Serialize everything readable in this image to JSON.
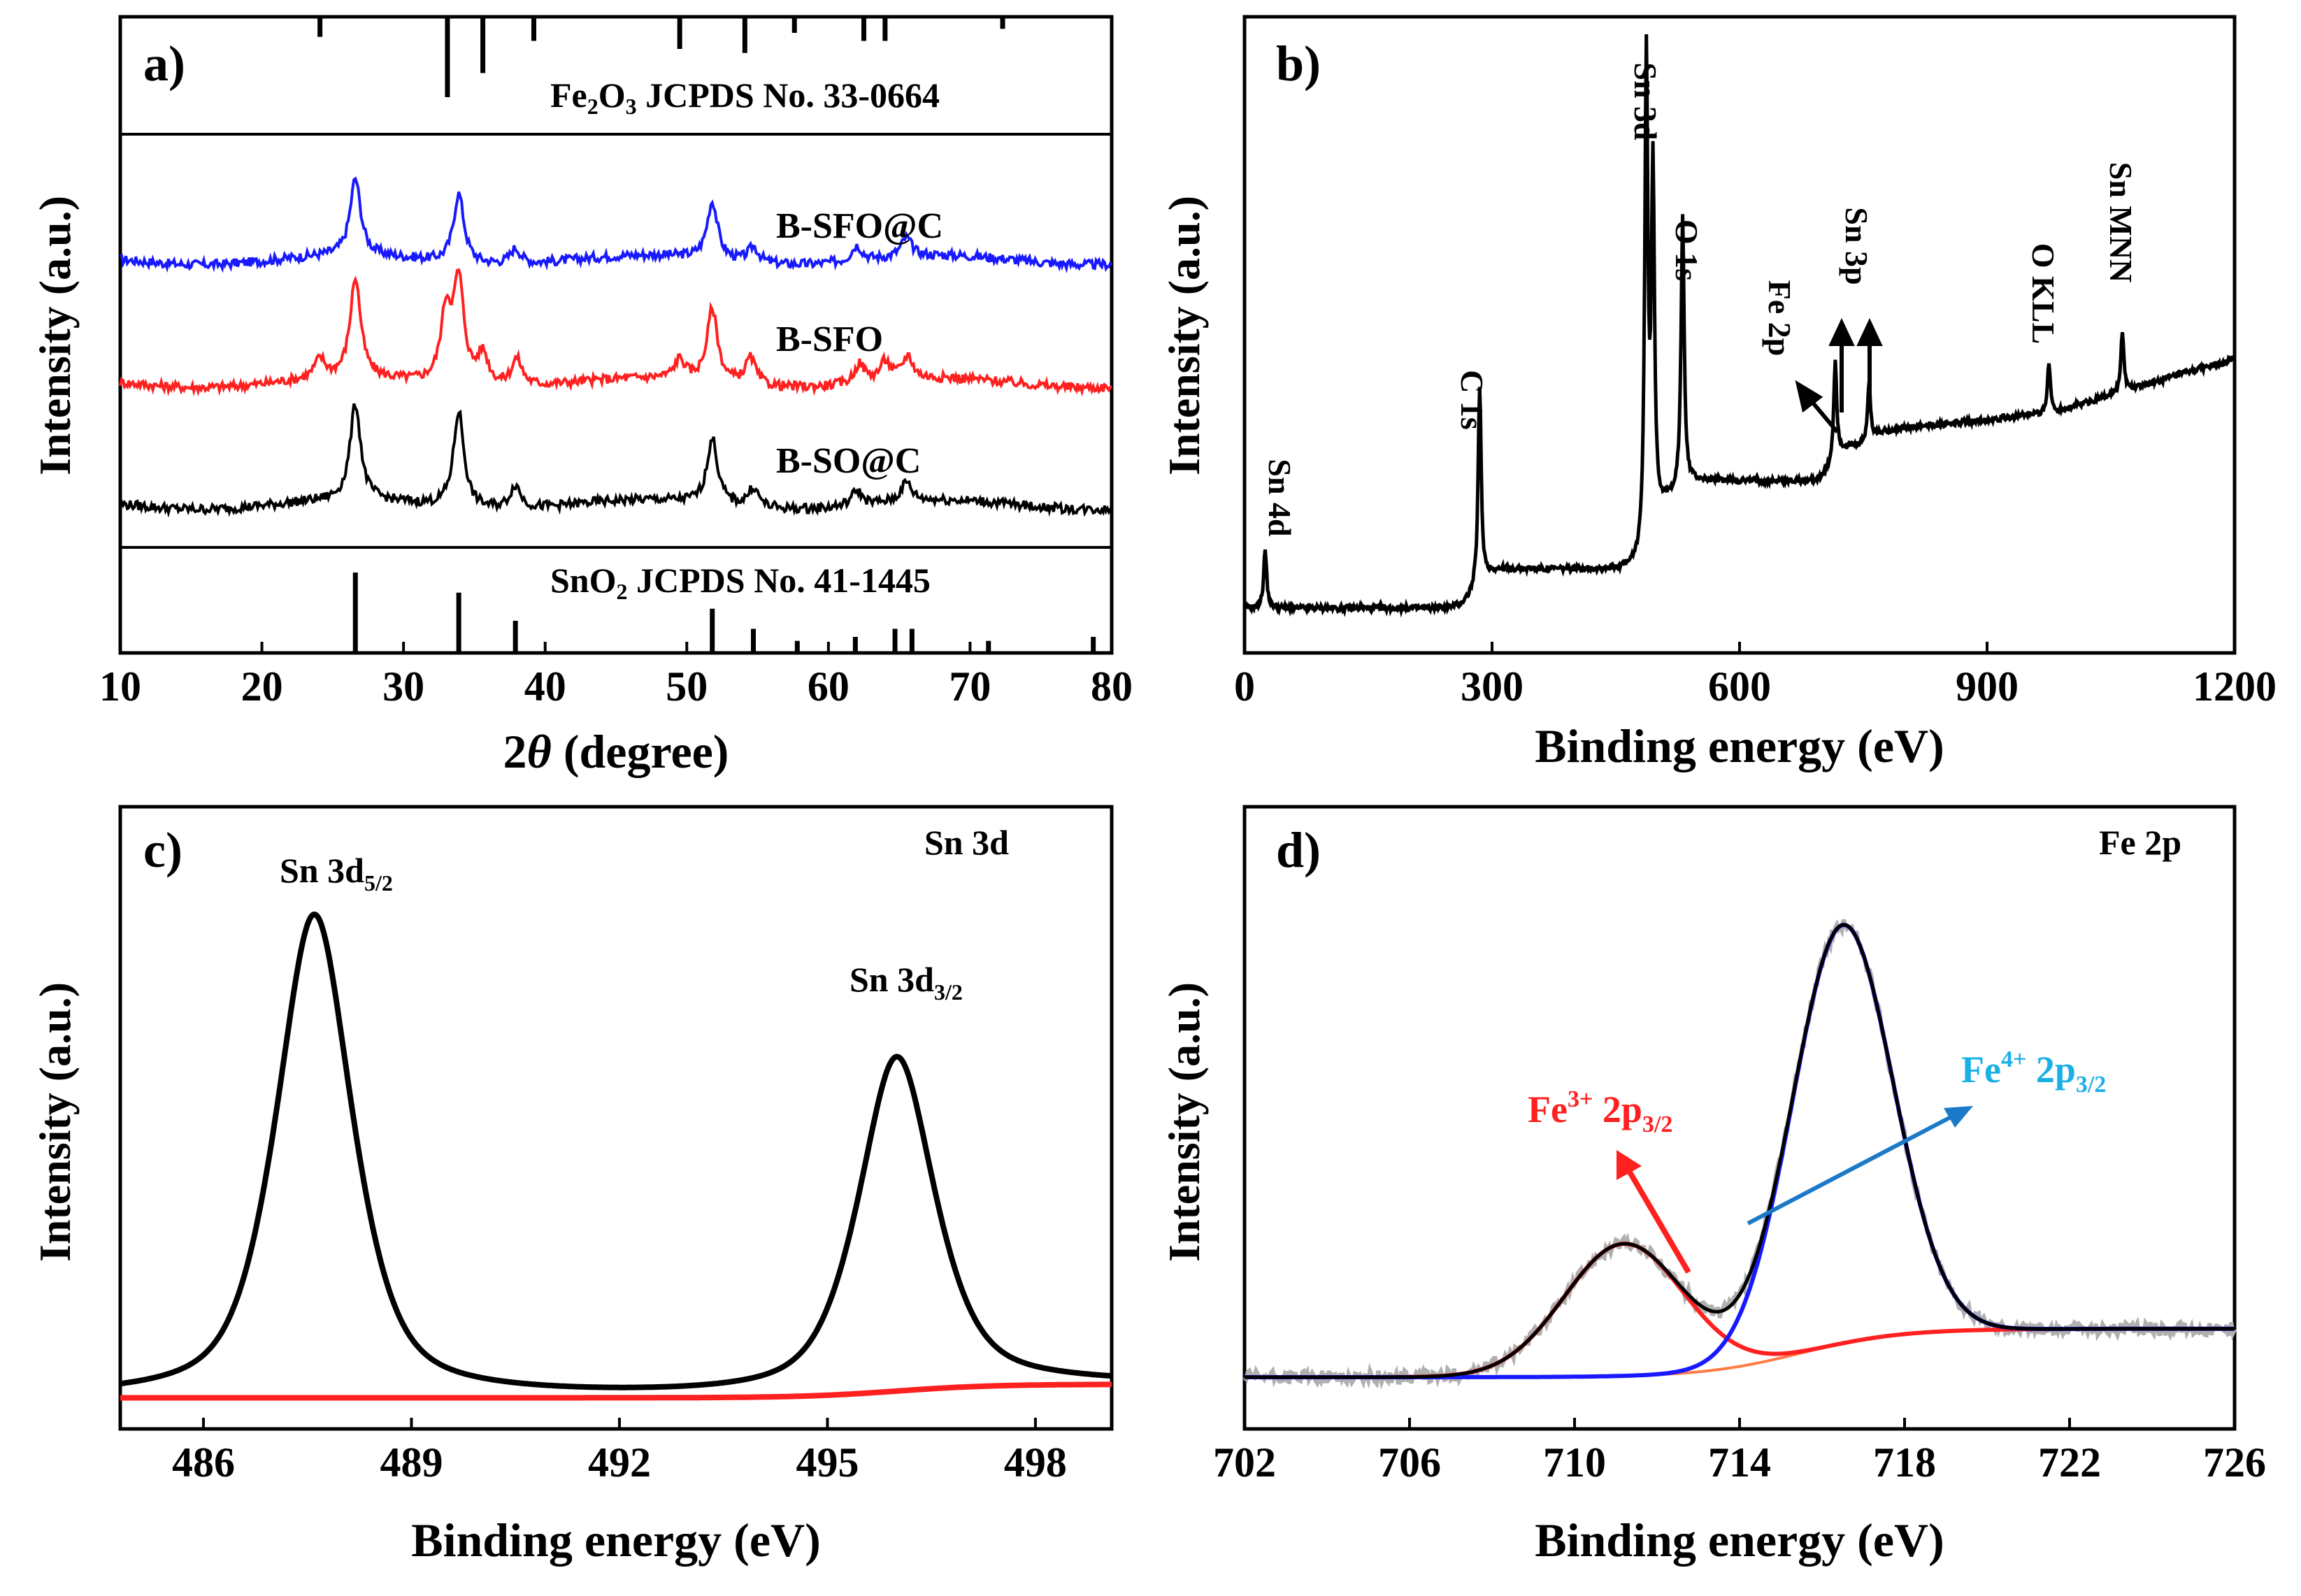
{
  "colors": {
    "blue": "#1919ff",
    "red": "#ff2020",
    "black": "#000000",
    "cyan": "#1ab0e6",
    "arrow_blue": "#1a7ac8",
    "grey": "#b0b0b0",
    "orange": "#ff7a45"
  },
  "chart_data": [
    {
      "type": "line",
      "panel": "a)",
      "xlabel_prefix": "2",
      "xlabel_theta": "θ",
      "xlabel_suffix": " (degree)",
      "ylabel": "Intensity (a.u.)",
      "xlim": [
        10,
        80
      ],
      "xticks": [
        10,
        20,
        30,
        40,
        50,
        60,
        70,
        80
      ],
      "series": [
        {
          "name": "B-SFO@C",
          "color": "#1919ff",
          "peaks": [
            [
              26.6,
              1.0
            ],
            [
              33.9,
              0.9
            ],
            [
              37.9,
              0.2
            ],
            [
              51.8,
              0.75
            ],
            [
              54.7,
              0.2
            ],
            [
              62.0,
              0.2
            ],
            [
              65.5,
              0.25
            ]
          ]
        },
        {
          "name": "B-SFO",
          "color": "#ff2020",
          "peaks": [
            [
              24.1,
              0.25
            ],
            [
              26.6,
              1.3
            ],
            [
              33.0,
              0.9
            ],
            [
              33.9,
              1.3
            ],
            [
              35.6,
              0.4
            ],
            [
              38.0,
              0.35
            ],
            [
              49.5,
              0.25
            ],
            [
              51.8,
              0.95
            ],
            [
              54.5,
              0.35
            ],
            [
              62.2,
              0.25
            ],
            [
              64.0,
              0.25
            ],
            [
              65.6,
              0.3
            ]
          ]
        },
        {
          "name": "B-SO@C",
          "color": "#000000",
          "peaks": [
            [
              26.6,
              1.25
            ],
            [
              33.9,
              1.25
            ],
            [
              37.9,
              0.3
            ],
            [
              51.8,
              0.85
            ],
            [
              54.7,
              0.25
            ],
            [
              62.0,
              0.2
            ],
            [
              65.5,
              0.25
            ]
          ]
        }
      ],
      "reference_top": {
        "label_pre": "Fe",
        "sub1": "2",
        "label_mid": "O",
        "sub2": "3",
        "label_post": " JCPDS No. 33-0664",
        "lines": [
          [
            24.1,
            0.25
          ],
          [
            33.1,
            1.0
          ],
          [
            35.6,
            0.7
          ],
          [
            39.2,
            0.3
          ],
          [
            49.5,
            0.4
          ],
          [
            54.1,
            0.45
          ],
          [
            57.6,
            0.2
          ],
          [
            62.5,
            0.3
          ],
          [
            64.0,
            0.3
          ],
          [
            72.3,
            0.15
          ]
        ]
      },
      "reference_bottom": {
        "label_pre": "SnO",
        "sub": "2",
        "label_post": " JCPDS No. 41-1445",
        "lines": [
          [
            26.6,
            1.0
          ],
          [
            33.9,
            0.75
          ],
          [
            37.9,
            0.4
          ],
          [
            51.8,
            0.55
          ],
          [
            54.7,
            0.3
          ],
          [
            57.8,
            0.15
          ],
          [
            61.9,
            0.2
          ],
          [
            64.7,
            0.3
          ],
          [
            65.9,
            0.3
          ],
          [
            71.3,
            0.15
          ],
          [
            78.7,
            0.2
          ]
        ]
      }
    },
    {
      "type": "line",
      "panel": "b)",
      "xlabel": "Binding energy (eV)",
      "ylabel": "Intensity (a.u.)",
      "xlim": [
        0,
        1200
      ],
      "xticks": [
        0,
        300,
        600,
        900,
        1200
      ],
      "annotations": [
        "Sn 4d",
        "C 1s",
        "Sn 3d",
        "O 1s",
        "Fe 2p",
        "Sn 3p",
        "O KLL",
        "Sn MNN"
      ],
      "peaks": [
        [
          25,
          0.12
        ],
        [
          285,
          0.4
        ],
        [
          487,
          1.0
        ],
        [
          495,
          0.72
        ],
        [
          531,
          0.55
        ],
        [
          716,
          0.2
        ],
        [
          757,
          0.12
        ],
        [
          975,
          0.1
        ],
        [
          1064,
          0.12
        ]
      ]
    },
    {
      "type": "line",
      "panel": "c)",
      "title": "Sn 3d",
      "xlabel": "Binding energy (eV)",
      "ylabel": "Intensity (a.u.)",
      "xlim": [
        484.8,
        499.1
      ],
      "xticks": [
        486,
        489,
        492,
        495,
        498
      ],
      "peaks": [
        {
          "label_pre": "Sn 3d",
          "label_sub": "5/2",
          "x": 487.6,
          "height": 1.0
        },
        {
          "label_pre": "Sn 3d",
          "label_sub": "3/2",
          "x": 496.0,
          "height": 0.69
        }
      ]
    },
    {
      "type": "line",
      "panel": "d)",
      "title": "Fe 2p",
      "xlabel": "Binding energy (eV)",
      "ylabel": "Intensity (a.u.)",
      "xlim": [
        702,
        726
      ],
      "xticks": [
        702,
        706,
        710,
        714,
        718,
        722,
        726
      ],
      "components": [
        {
          "label_pre": "Fe",
          "label_sup": "3+",
          "label_mid": " 2p",
          "label_sub": "3/2",
          "x": 711.2,
          "height": 0.3,
          "color": "#ff2020"
        },
        {
          "label_pre": "Fe",
          "label_sup": "4+",
          "label_mid": " 2p",
          "label_sub": "3/2",
          "x": 716.5,
          "height": 0.95,
          "color": "#1919ff"
        }
      ]
    }
  ]
}
